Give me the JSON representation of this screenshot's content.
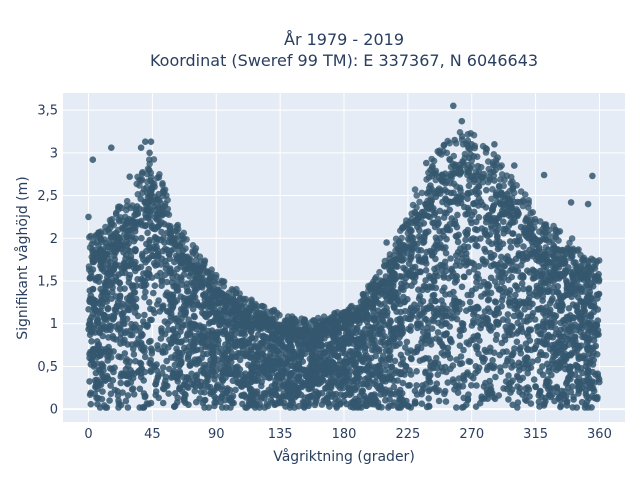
{
  "chart_data": {
    "type": "scatter",
    "title_line1": "År 1979 - 2019",
    "title_line2": "Koordinat (Sweref 99 TM): E 337367, N 6046643",
    "xlabel": "Vågriktning (grader)",
    "ylabel": "Signifikant våghöjd (m)",
    "xlim": [
      -18,
      378
    ],
    "ylim": [
      -0.15,
      3.7
    ],
    "x_ticks": [
      0,
      45,
      90,
      135,
      180,
      225,
      270,
      315,
      360
    ],
    "x_tick_labels": [
      "0",
      "45",
      "90",
      "135",
      "180",
      "225",
      "270",
      "315",
      "360"
    ],
    "y_ticks": [
      0,
      0.5,
      1,
      1.5,
      2,
      2.5,
      3,
      3.5
    ],
    "y_tick_labels": [
      "0",
      "0,5",
      "1",
      "1,5",
      "2",
      "2,5",
      "3",
      "3,5"
    ],
    "grid": true,
    "marker_color": "#34576e",
    "envelope": {
      "direction": [
        0,
        10,
        20,
        30,
        40,
        45,
        50,
        60,
        70,
        80,
        90,
        100,
        110,
        120,
        130,
        135,
        140,
        150,
        160,
        170,
        180,
        190,
        200,
        210,
        220,
        225,
        230,
        240,
        250,
        260,
        270,
        280,
        290,
        300,
        310,
        315,
        320,
        330,
        340,
        350,
        360
      ],
      "typical_max_height": [
        1.8,
        1.9,
        2.1,
        2.3,
        2.6,
        2.7,
        2.5,
        2.0,
        1.8,
        1.6,
        1.4,
        1.3,
        1.2,
        1.1,
        1.05,
        1.0,
        0.98,
        0.95,
        0.95,
        0.98,
        1.05,
        1.15,
        1.35,
        1.6,
        1.9,
        2.05,
        2.3,
        2.6,
        2.8,
        2.9,
        2.9,
        2.8,
        2.6,
        2.4,
        2.2,
        2.1,
        2.0,
        1.9,
        1.8,
        1.6,
        1.6
      ]
    },
    "outliers": [
      {
        "x": 3,
        "y": 2.92
      },
      {
        "x": 16,
        "y": 3.06
      },
      {
        "x": 37,
        "y": 3.06
      },
      {
        "x": 40,
        "y": 3.13
      },
      {
        "x": 44,
        "y": 3.13
      },
      {
        "x": 43,
        "y": 3.0
      },
      {
        "x": 29,
        "y": 2.72
      },
      {
        "x": 257,
        "y": 3.55
      },
      {
        "x": 263,
        "y": 3.37
      },
      {
        "x": 258,
        "y": 3.15
      },
      {
        "x": 270,
        "y": 3.1
      },
      {
        "x": 286,
        "y": 3.1
      },
      {
        "x": 238,
        "y": 2.88
      },
      {
        "x": 321,
        "y": 2.74
      },
      {
        "x": 355,
        "y": 2.73
      },
      {
        "x": 300,
        "y": 2.85
      },
      {
        "x": 340,
        "y": 2.42
      },
      {
        "x": 352,
        "y": 2.4
      },
      {
        "x": 210,
        "y": 1.95
      },
      {
        "x": 0,
        "y": 2.25
      }
    ]
  }
}
